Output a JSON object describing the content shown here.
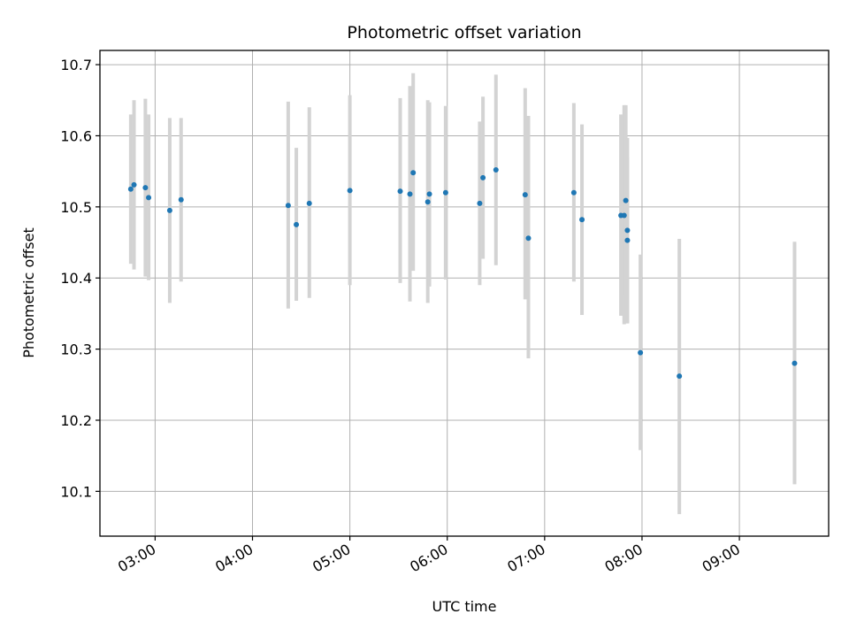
{
  "chart_data": {
    "type": "scatter",
    "title": "Photometric offset variation",
    "xlabel": "UTC time",
    "ylabel": "Photometric offset",
    "x_unit": "UTC time (hh:mm)",
    "xlim": [
      "02:26",
      "09:55"
    ],
    "ylim": [
      10.037,
      10.72
    ],
    "x_ticks": [
      "03:00",
      "04:00",
      "05:00",
      "06:00",
      "07:00",
      "08:00",
      "09:00"
    ],
    "y_ticks": [
      10.1,
      10.2,
      10.3,
      10.4,
      10.5,
      10.6,
      10.7
    ],
    "y_tick_labels": [
      "10.1",
      "10.2",
      "10.3",
      "10.4",
      "10.5",
      "10.6",
      "10.7"
    ],
    "grid": true,
    "marker_color": "#1f77b4",
    "errorbar_color": "#d3d3d3",
    "points": [
      {
        "x": "02:45",
        "y": 10.525,
        "yerr_low": 10.42,
        "yerr_high": 10.63
      },
      {
        "x": "02:47",
        "y": 10.531,
        "yerr_low": 10.412,
        "yerr_high": 10.65
      },
      {
        "x": "02:54",
        "y": 10.527,
        "yerr_low": 10.402,
        "yerr_high": 10.652
      },
      {
        "x": "02:56",
        "y": 10.513,
        "yerr_low": 10.397,
        "yerr_high": 10.63
      },
      {
        "x": "03:09",
        "y": 10.495,
        "yerr_low": 10.365,
        "yerr_high": 10.625
      },
      {
        "x": "03:16",
        "y": 10.51,
        "yerr_low": 10.395,
        "yerr_high": 10.625
      },
      {
        "x": "04:22",
        "y": 10.502,
        "yerr_low": 10.357,
        "yerr_high": 10.648
      },
      {
        "x": "04:27",
        "y": 10.475,
        "yerr_low": 10.368,
        "yerr_high": 10.583
      },
      {
        "x": "04:35",
        "y": 10.505,
        "yerr_low": 10.372,
        "yerr_high": 10.64
      },
      {
        "x": "05:00",
        "y": 10.523,
        "yerr_low": 10.39,
        "yerr_high": 10.657
      },
      {
        "x": "05:31",
        "y": 10.522,
        "yerr_low": 10.393,
        "yerr_high": 10.653
      },
      {
        "x": "05:37",
        "y": 10.518,
        "yerr_low": 10.367,
        "yerr_high": 10.67
      },
      {
        "x": "05:39",
        "y": 10.548,
        "yerr_low": 10.41,
        "yerr_high": 10.688
      },
      {
        "x": "05:48",
        "y": 10.507,
        "yerr_low": 10.365,
        "yerr_high": 10.65
      },
      {
        "x": "05:49",
        "y": 10.518,
        "yerr_low": 10.388,
        "yerr_high": 10.647
      },
      {
        "x": "05:59",
        "y": 10.52,
        "yerr_low": 10.398,
        "yerr_high": 10.642
      },
      {
        "x": "06:20",
        "y": 10.505,
        "yerr_low": 10.39,
        "yerr_high": 10.62
      },
      {
        "x": "06:22",
        "y": 10.541,
        "yerr_low": 10.427,
        "yerr_high": 10.655
      },
      {
        "x": "06:30",
        "y": 10.552,
        "yerr_low": 10.418,
        "yerr_high": 10.686
      },
      {
        "x": "06:48",
        "y": 10.517,
        "yerr_low": 10.37,
        "yerr_high": 10.667
      },
      {
        "x": "06:50",
        "y": 10.456,
        "yerr_low": 10.287,
        "yerr_high": 10.628
      },
      {
        "x": "07:18",
        "y": 10.52,
        "yerr_low": 10.395,
        "yerr_high": 10.646
      },
      {
        "x": "07:23",
        "y": 10.482,
        "yerr_low": 10.348,
        "yerr_high": 10.616
      },
      {
        "x": "07:47",
        "y": 10.488,
        "yerr_low": 10.347,
        "yerr_high": 10.63
      },
      {
        "x": "07:49",
        "y": 10.488,
        "yerr_low": 10.335,
        "yerr_high": 10.643
      },
      {
        "x": "07:50",
        "y": 10.509,
        "yerr_low": 10.375,
        "yerr_high": 10.643
      },
      {
        "x": "07:51",
        "y": 10.467,
        "yerr_low": 10.337,
        "yerr_high": 10.597
      },
      {
        "x": "07:51",
        "y": 10.453,
        "yerr_low": 10.336,
        "yerr_high": 10.57
      },
      {
        "x": "07:59",
        "y": 10.295,
        "yerr_low": 10.158,
        "yerr_high": 10.433
      },
      {
        "x": "08:23",
        "y": 10.262,
        "yerr_low": 10.068,
        "yerr_high": 10.455
      },
      {
        "x": "09:34",
        "y": 10.28,
        "yerr_low": 10.11,
        "yerr_high": 10.451
      }
    ]
  }
}
